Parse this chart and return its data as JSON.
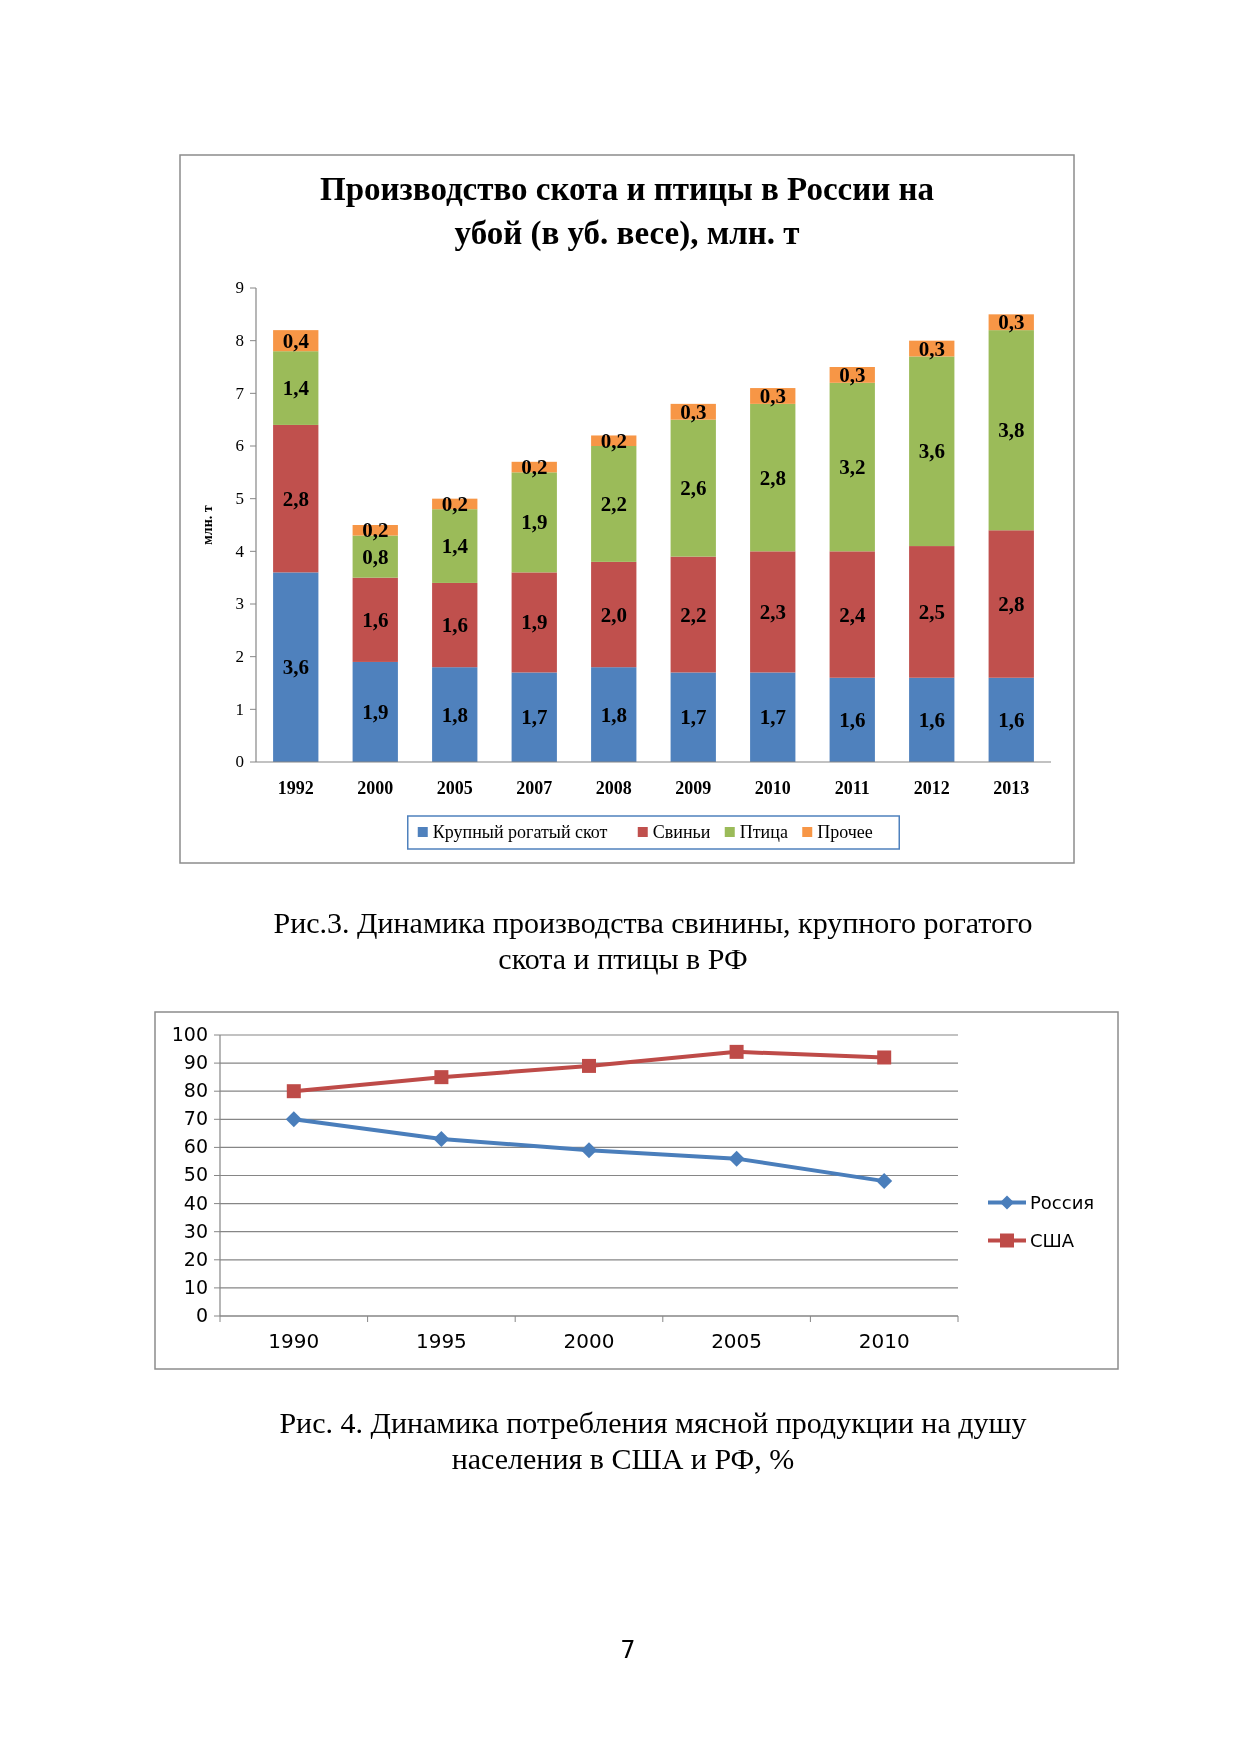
{
  "chart_data": [
    {
      "type": "bar",
      "stacked": true,
      "title": "Производство скота и птицы в России на убой (в уб. весе), млн. т",
      "ylabel": "млн. т",
      "categories": [
        "1992",
        "2000",
        "2005",
        "2007",
        "2008",
        "2009",
        "2010",
        "2011",
        "2012",
        "2013"
      ],
      "ylim": [
        0,
        9
      ],
      "yticks": [
        0,
        1,
        2,
        3,
        4,
        5,
        6,
        7,
        8,
        9
      ],
      "legend": "bottom",
      "series": [
        {
          "name": "Крупный рогатый скот",
          "color": "#4f81bd",
          "values": [
            3.6,
            1.9,
            1.8,
            1.7,
            1.8,
            1.7,
            1.7,
            1.6,
            1.6,
            1.6
          ],
          "value_labels": [
            "3,6",
            "1,9",
            "1,8",
            "1,7",
            "1,8",
            "1,7",
            "1,7",
            "1,6",
            "1,6",
            "1,6"
          ]
        },
        {
          "name": "Свиньи",
          "color": "#c0504d",
          "values": [
            2.8,
            1.6,
            1.6,
            1.9,
            2.0,
            2.2,
            2.3,
            2.4,
            2.5,
            2.8
          ],
          "value_labels": [
            "2,8",
            "1,6",
            "1,6",
            "1,9",
            "2,0",
            "2,2",
            "2,3",
            "2,4",
            "2,5",
            "2,8"
          ]
        },
        {
          "name": "Птица",
          "color": "#9bbb59",
          "values": [
            1.4,
            0.8,
            1.4,
            1.9,
            2.2,
            2.6,
            2.8,
            3.2,
            3.6,
            3.8
          ],
          "value_labels": [
            "1,4",
            "0,8",
            "1,4",
            "1,9",
            "2,2",
            "2,6",
            "2,8",
            "3,2",
            "3,6",
            "3,8"
          ]
        },
        {
          "name": "Прочее",
          "color": "#f79646",
          "values": [
            0.4,
            0.2,
            0.2,
            0.2,
            0.2,
            0.3,
            0.3,
            0.3,
            0.3,
            0.3
          ],
          "value_labels": [
            "0,4",
            "0,2",
            "0,2",
            "0,2",
            "0,2",
            "0,3",
            "0,3",
            "0,3",
            "0,3",
            "0,3"
          ]
        }
      ],
      "annotations": [
        "Рис.3. Динамика производства свинины, крупного рогатого скота и птицы в РФ"
      ]
    },
    {
      "type": "line",
      "categories": [
        "1990",
        "1995",
        "2000",
        "2005",
        "2010"
      ],
      "ylim": [
        0,
        100
      ],
      "yticks": [
        0,
        10,
        20,
        30,
        40,
        50,
        60,
        70,
        80,
        90,
        100
      ],
      "grid": "y",
      "legend": "right",
      "series": [
        {
          "name": "Россия",
          "color": "#4a7ebb",
          "marker": "diamond",
          "values": [
            70,
            63,
            59,
            56,
            48
          ]
        },
        {
          "name": "США",
          "color": "#be4b48",
          "marker": "square",
          "values": [
            80,
            85,
            89,
            94,
            92
          ]
        }
      ],
      "annotations": [
        "Рис. 4. Динамика потребления мясной продукции на душу населения в США и РФ, %",
        "7"
      ]
    }
  ]
}
